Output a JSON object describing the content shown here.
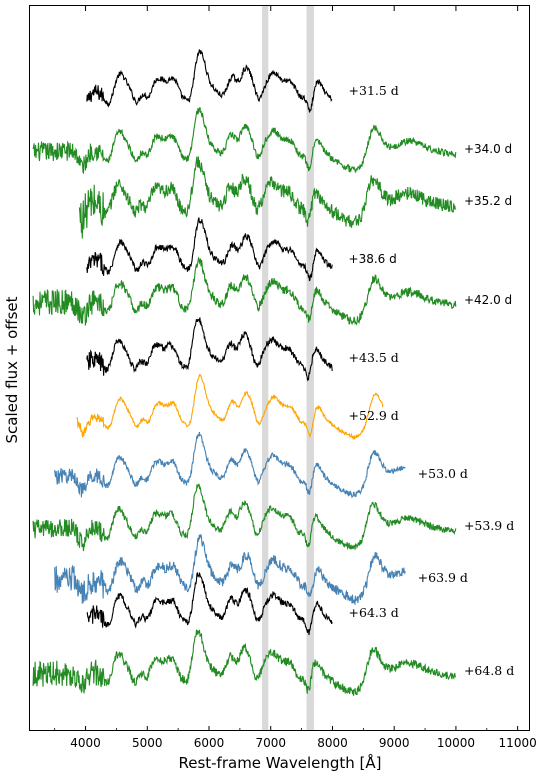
{
  "chart_data": {
    "type": "line",
    "title": "",
    "xlabel": "Rest-frame Wavelength [Å]",
    "ylabel": "Scaled flux + offset",
    "xlim": [
      3100,
      11200
    ],
    "xticks": [
      4000,
      5000,
      6000,
      7000,
      8000,
      9000,
      10000,
      11000
    ],
    "xtick_labels": [
      "4000",
      "5000",
      "6000",
      "7000",
      "8000",
      "9000",
      "10000",
      "11000"
    ],
    "yticks_shown": false,
    "grid": false,
    "legend": "none",
    "telluric_bands": [
      [
        6860,
        6960
      ],
      [
        7580,
        7700
      ]
    ],
    "telluric_band_color": "#d9d9d9",
    "colors": {
      "black": "#000000",
      "green": "#228b22",
      "orange": "#ffa500",
      "blue": "#4682b4"
    },
    "series": [
      {
        "name": "+31.5 d",
        "color": "#000000",
        "xmin": 4020,
        "xmax": 8000,
        "offset": 0.0,
        "noise": 0.01,
        "label_x": 8260,
        "label_font": "serif"
      },
      {
        "name": "+34.0 d",
        "color": "#228b22",
        "xmin": 3150,
        "xmax": 10000,
        "offset": 1.0,
        "noise": 0.012,
        "label_x": 10130,
        "label_font": "sans"
      },
      {
        "name": "+35.2 d",
        "color": "#228b22",
        "xmin": 3900,
        "xmax": 10000,
        "offset": 1.9,
        "noise": 0.025,
        "label_x": 10130,
        "label_font": "sans"
      },
      {
        "name": "+38.6 d",
        "color": "#000000",
        "xmin": 4020,
        "xmax": 8000,
        "offset": 2.9,
        "noise": 0.012,
        "label_x": 8260,
        "label_font": "sans"
      },
      {
        "name": "+42.0 d",
        "color": "#228b22",
        "xmin": 3150,
        "xmax": 10000,
        "offset": 3.6,
        "noise": 0.016,
        "label_x": 10130,
        "label_font": "sans"
      },
      {
        "name": "+43.5 d",
        "color": "#000000",
        "xmin": 4020,
        "xmax": 8000,
        "offset": 4.6,
        "noise": 0.012,
        "label_x": 8260,
        "label_font": "serif"
      },
      {
        "name": "+52.9 d",
        "color": "#ffa500",
        "xmin": 3860,
        "xmax": 8820,
        "offset": 5.6,
        "noise": 0.006,
        "label_x": 8260,
        "label_font": "serif"
      },
      {
        "name": "+53.0 d",
        "color": "#4682b4",
        "xmin": 3500,
        "xmax": 9180,
        "offset": 6.6,
        "noise": 0.01,
        "label_x": 9380,
        "label_font": "serif"
      },
      {
        "name": "+53.9 d",
        "color": "#228b22",
        "xmin": 3150,
        "xmax": 10000,
        "offset": 7.5,
        "noise": 0.012,
        "label_x": 10130,
        "label_font": "serif"
      },
      {
        "name": "+63.9 d",
        "color": "#4682b4",
        "xmin": 3500,
        "xmax": 9180,
        "offset": 8.4,
        "noise": 0.018,
        "label_x": 9380,
        "label_font": "serif"
      },
      {
        "name": "+64.3 d",
        "color": "#000000",
        "xmin": 4020,
        "xmax": 8000,
        "offset": 9.0,
        "noise": 0.012,
        "label_x": 8260,
        "label_font": "serif"
      },
      {
        "name": "+64.8 d",
        "color": "#228b22",
        "xmin": 3150,
        "xmax": 10000,
        "offset": 10.0,
        "noise": 0.016,
        "label_x": 10130,
        "label_font": "serif"
      }
    ]
  }
}
